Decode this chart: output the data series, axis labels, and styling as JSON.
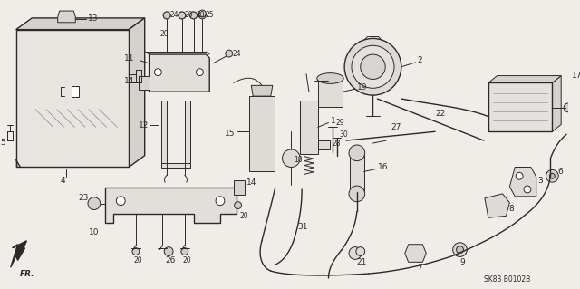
{
  "bg_color": "#f0ede8",
  "line_color": "#2a2a2a",
  "fig_width": 6.4,
  "fig_height": 3.19,
  "dpi": 100,
  "watermark": "SK83 B0102B",
  "fr_label": "FR."
}
